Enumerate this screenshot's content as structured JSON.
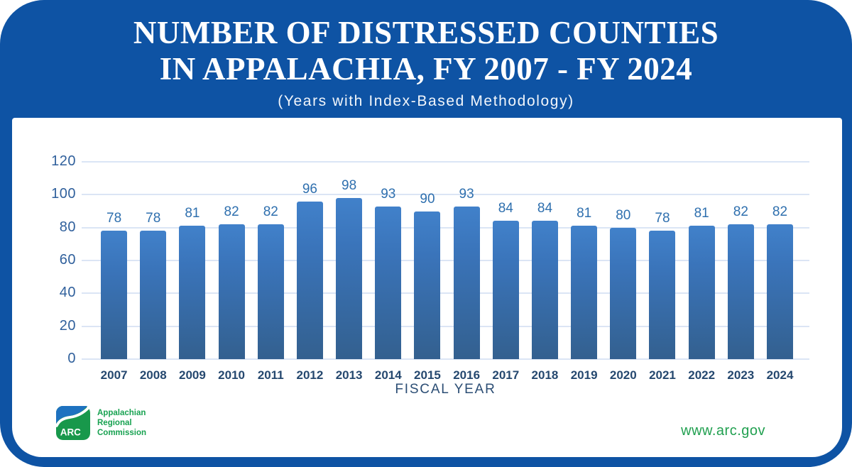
{
  "header": {
    "title_line1": "NUMBER OF DISTRESSED COUNTIES",
    "title_line2": "IN APPALACHIA, FY 2007 - FY 2024",
    "subtitle": "(Years with Index-Based Methodology)"
  },
  "chart_data": {
    "type": "bar",
    "title": "Number of Distressed Counties in Appalachia, FY 2007 - FY 2024",
    "subtitle": "(Years with Index-Based Methodology)",
    "categories": [
      "2007",
      "2008",
      "2009",
      "2010",
      "2011",
      "2012",
      "2013",
      "2014",
      "2015",
      "2016",
      "2017",
      "2018",
      "2019",
      "2020",
      "2021",
      "2022",
      "2023",
      "2024"
    ],
    "values": [
      78,
      78,
      81,
      82,
      82,
      96,
      98,
      93,
      90,
      93,
      84,
      84,
      81,
      80,
      78,
      81,
      82,
      82
    ],
    "xlabel": "FISCAL YEAR",
    "ylabel": "",
    "ylim": [
      0,
      120
    ],
    "yticks": [
      0,
      20,
      40,
      60,
      80,
      100,
      120
    ],
    "grid": true,
    "legend": "none",
    "data_labels": true
  },
  "footer": {
    "logo": {
      "abbr": "ARC",
      "name_lines": [
        "Appalachian",
        "Regional",
        "Commission"
      ]
    },
    "website": "www.arc.gov"
  },
  "colors": {
    "frame_blue": "#0e53a4",
    "bar_top": "#4181ca",
    "bar_bottom": "#33608f",
    "value_label": "#2e6fae",
    "axis_label": "#25486f",
    "ytick_label": "#30609c",
    "gridline": "#dbe5f5",
    "logo_green": "#18a251",
    "logo_blue": "#1e72c0",
    "website_green": "#21a050"
  }
}
